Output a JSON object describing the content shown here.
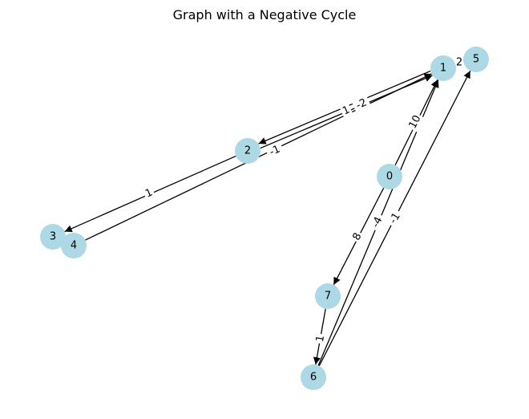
{
  "title": "Graph with a Negative Cycle",
  "colors": {
    "node_fill": "#add8e6",
    "edge": "#000000",
    "background": "#ffffff"
  },
  "graph": {
    "directed": true,
    "nodes": [
      {
        "id": "0",
        "label": "0"
      },
      {
        "id": "1",
        "label": "1"
      },
      {
        "id": "2",
        "label": "2"
      },
      {
        "id": "3",
        "label": "3"
      },
      {
        "id": "4",
        "label": "4"
      },
      {
        "id": "5",
        "label": "5"
      },
      {
        "id": "6",
        "label": "6"
      },
      {
        "id": "7",
        "label": "7"
      }
    ],
    "edges": [
      {
        "source": "0",
        "target": "1",
        "weight": "10"
      },
      {
        "source": "0",
        "target": "7",
        "weight": "8"
      },
      {
        "source": "1",
        "target": "2",
        "weight": "-2"
      },
      {
        "source": "2",
        "target": "1",
        "weight": "1"
      },
      {
        "source": "1",
        "target": "5",
        "weight": "2"
      },
      {
        "source": "2",
        "target": "3",
        "weight": "1"
      },
      {
        "source": "4",
        "target": "1",
        "weight": "-1"
      },
      {
        "source": "7",
        "target": "6",
        "weight": "1"
      },
      {
        "source": "6",
        "target": "1",
        "weight": "-4"
      },
      {
        "source": "6",
        "target": "5",
        "weight": "-1"
      }
    ]
  }
}
